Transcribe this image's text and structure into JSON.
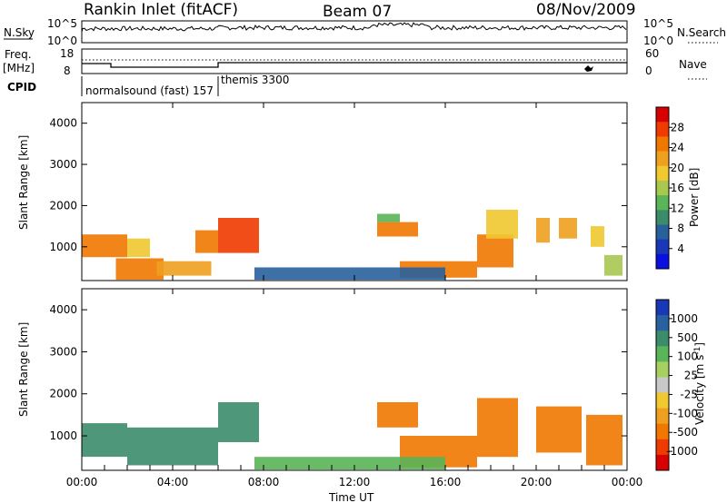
{
  "header": {
    "station": "Rankin Inlet (fitACF)",
    "beam": "Beam 07",
    "date": "08/Nov/2009"
  },
  "noise_panel": {
    "left_label": "N.Sky",
    "right_label": "N.Search",
    "left_ticks": [
      "10^5",
      "10^0"
    ],
    "right_ticks": [
      "10^5",
      "10^0"
    ]
  },
  "freq_panel": {
    "left_label": "Freq.",
    "left_unit": "[MHz]",
    "right_label": "Nave",
    "left_ticks": [
      "18",
      "8"
    ],
    "right_ticks": [
      "60",
      "0"
    ]
  },
  "cpid_panel": {
    "label": "CPID",
    "modes": [
      {
        "name": "normalsound (fast)",
        "id": "157"
      },
      {
        "name": "themis",
        "id": "3300"
      }
    ]
  },
  "chart_data": [
    {
      "type": "heatmap",
      "name": "Power",
      "ylabel": "Slant Range [km]",
      "xlabel": "",
      "ylim": [
        180,
        4500
      ],
      "yticks": [
        "1000",
        "2000",
        "3000",
        "4000"
      ],
      "colorbar": {
        "label": "Power [dB]",
        "ticks": [
          "28",
          "24",
          "20",
          "16",
          "12",
          "8",
          "4"
        ],
        "colors": [
          "#d80000",
          "#f03a00",
          "#f07800",
          "#f0a020",
          "#f0c830",
          "#a8c850",
          "#5ab458",
          "#3c8c6c",
          "#28609c",
          "#1838b8",
          "#0a10e0"
        ]
      },
      "regions": [
        {
          "t0": 0.0,
          "t1": 2.0,
          "r0": 750,
          "r1": 1300,
          "level": 24
        },
        {
          "t0": 1.5,
          "t1": 3.6,
          "r0": 200,
          "r1": 720,
          "level": 22
        },
        {
          "t0": 2.0,
          "t1": 3.0,
          "r0": 750,
          "r1": 1200,
          "level": 18
        },
        {
          "t0": 3.3,
          "t1": 5.7,
          "r0": 300,
          "r1": 650,
          "level": 20
        },
        {
          "t0": 5.0,
          "t1": 6.0,
          "r0": 850,
          "r1": 1400,
          "level": 24
        },
        {
          "t0": 6.0,
          "t1": 7.8,
          "r0": 850,
          "r1": 1700,
          "level": 26
        },
        {
          "t0": 13.0,
          "t1": 14.8,
          "r0": 1250,
          "r1": 1600,
          "level": 22
        },
        {
          "t0": 13.0,
          "t1": 14.0,
          "r0": 1600,
          "r1": 1800,
          "level": 12
        },
        {
          "t0": 14.0,
          "t1": 17.4,
          "r0": 250,
          "r1": 650,
          "level": 24
        },
        {
          "t0": 17.4,
          "t1": 19.0,
          "r0": 500,
          "r1": 1300,
          "level": 22
        },
        {
          "t0": 17.8,
          "t1": 19.2,
          "r0": 1200,
          "r1": 1900,
          "level": 18
        },
        {
          "t0": 20.0,
          "t1": 20.6,
          "r0": 1100,
          "r1": 1700,
          "level": 20
        },
        {
          "t0": 21.0,
          "t1": 21.8,
          "r0": 1200,
          "r1": 1700,
          "level": 20
        },
        {
          "t0": 22.4,
          "t1": 23.0,
          "r0": 1000,
          "r1": 1500,
          "level": 18
        },
        {
          "t0": 23.0,
          "t1": 23.8,
          "r0": 300,
          "r1": 800,
          "level": 16
        },
        {
          "t0": 7.6,
          "t1": 16.0,
          "r0": 200,
          "r1": 500,
          "level": 6
        }
      ]
    },
    {
      "type": "heatmap",
      "name": "Velocity",
      "ylabel": "Slant Range [km]",
      "xlabel": "Time UT",
      "xticks": [
        "00:00",
        "04:00",
        "08:00",
        "12:00",
        "16:00",
        "20:00",
        "00:00"
      ],
      "ylim": [
        180,
        4500
      ],
      "yticks": [
        "1000",
        "2000",
        "3000",
        "4000"
      ],
      "colorbar": {
        "label": "Velocity [m s^-1]",
        "ticks": [
          "1000",
          "500",
          "100",
          "25",
          "-25",
          "-100",
          "-500",
          "-1000"
        ],
        "colors": [
          "#1838b8",
          "#2860a0",
          "#3c8c6c",
          "#5ab458",
          "#a8d060",
          "#c8c8c8",
          "#f0c830",
          "#f0a020",
          "#f07800",
          "#f03a00",
          "#d80000"
        ]
      },
      "regions": [
        {
          "t0": 0.0,
          "t1": 2.0,
          "r0": 500,
          "r1": 1300,
          "level": 100
        },
        {
          "t0": 2.0,
          "t1": 6.0,
          "r0": 300,
          "r1": 1200,
          "level": 200
        },
        {
          "t0": 6.0,
          "t1": 7.8,
          "r0": 850,
          "r1": 1800,
          "level": 400
        },
        {
          "t0": 13.0,
          "t1": 14.8,
          "r0": 1200,
          "r1": 1800,
          "level": -300
        },
        {
          "t0": 14.0,
          "t1": 17.4,
          "r0": 250,
          "r1": 1000,
          "level": -400
        },
        {
          "t0": 17.4,
          "t1": 19.2,
          "r0": 500,
          "r1": 1900,
          "level": -300
        },
        {
          "t0": 20.0,
          "t1": 22.0,
          "r0": 600,
          "r1": 1700,
          "level": -200
        },
        {
          "t0": 22.2,
          "t1": 23.8,
          "r0": 300,
          "r1": 1500,
          "level": -100
        },
        {
          "t0": 7.6,
          "t1": 16.0,
          "r0": 200,
          "r1": 500,
          "level": 50
        }
      ]
    }
  ]
}
